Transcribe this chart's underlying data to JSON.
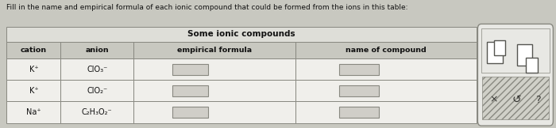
{
  "title": "Some ionic compounds",
  "instruction": "Fill in the name and empirical formula of each ionic compound that could be formed from the ions in this table:",
  "col_headers": [
    "cation",
    "anion",
    "empirical formula",
    "name of compound"
  ],
  "cations": [
    "K⁺",
    "K⁺",
    "Na⁺"
  ],
  "anions": [
    "ClO₃⁻",
    "ClO₂⁻",
    "C₂H₃O₂⁻"
  ],
  "bg_color": "#c8c8c0",
  "table_outer_bg": "#e0dfd8",
  "title_row_bg": "#deded8",
  "header_row_bg": "#c8c8c0",
  "data_row_bg": "#f0efeb",
  "input_box_fg": "#d0cec8",
  "input_box_border": "#888880",
  "border_color": "#888880",
  "text_color": "#111111",
  "sidebar_top_bg": "#e8e8e4",
  "sidebar_bottom_bg": "#d0d0c8",
  "sidebar_border": "#888880",
  "instruction_fontsize": 6.5,
  "title_fontsize": 7.5,
  "header_fontsize": 6.8,
  "cell_fontsize": 7.0,
  "sidebar_sym_fontsize": 9
}
